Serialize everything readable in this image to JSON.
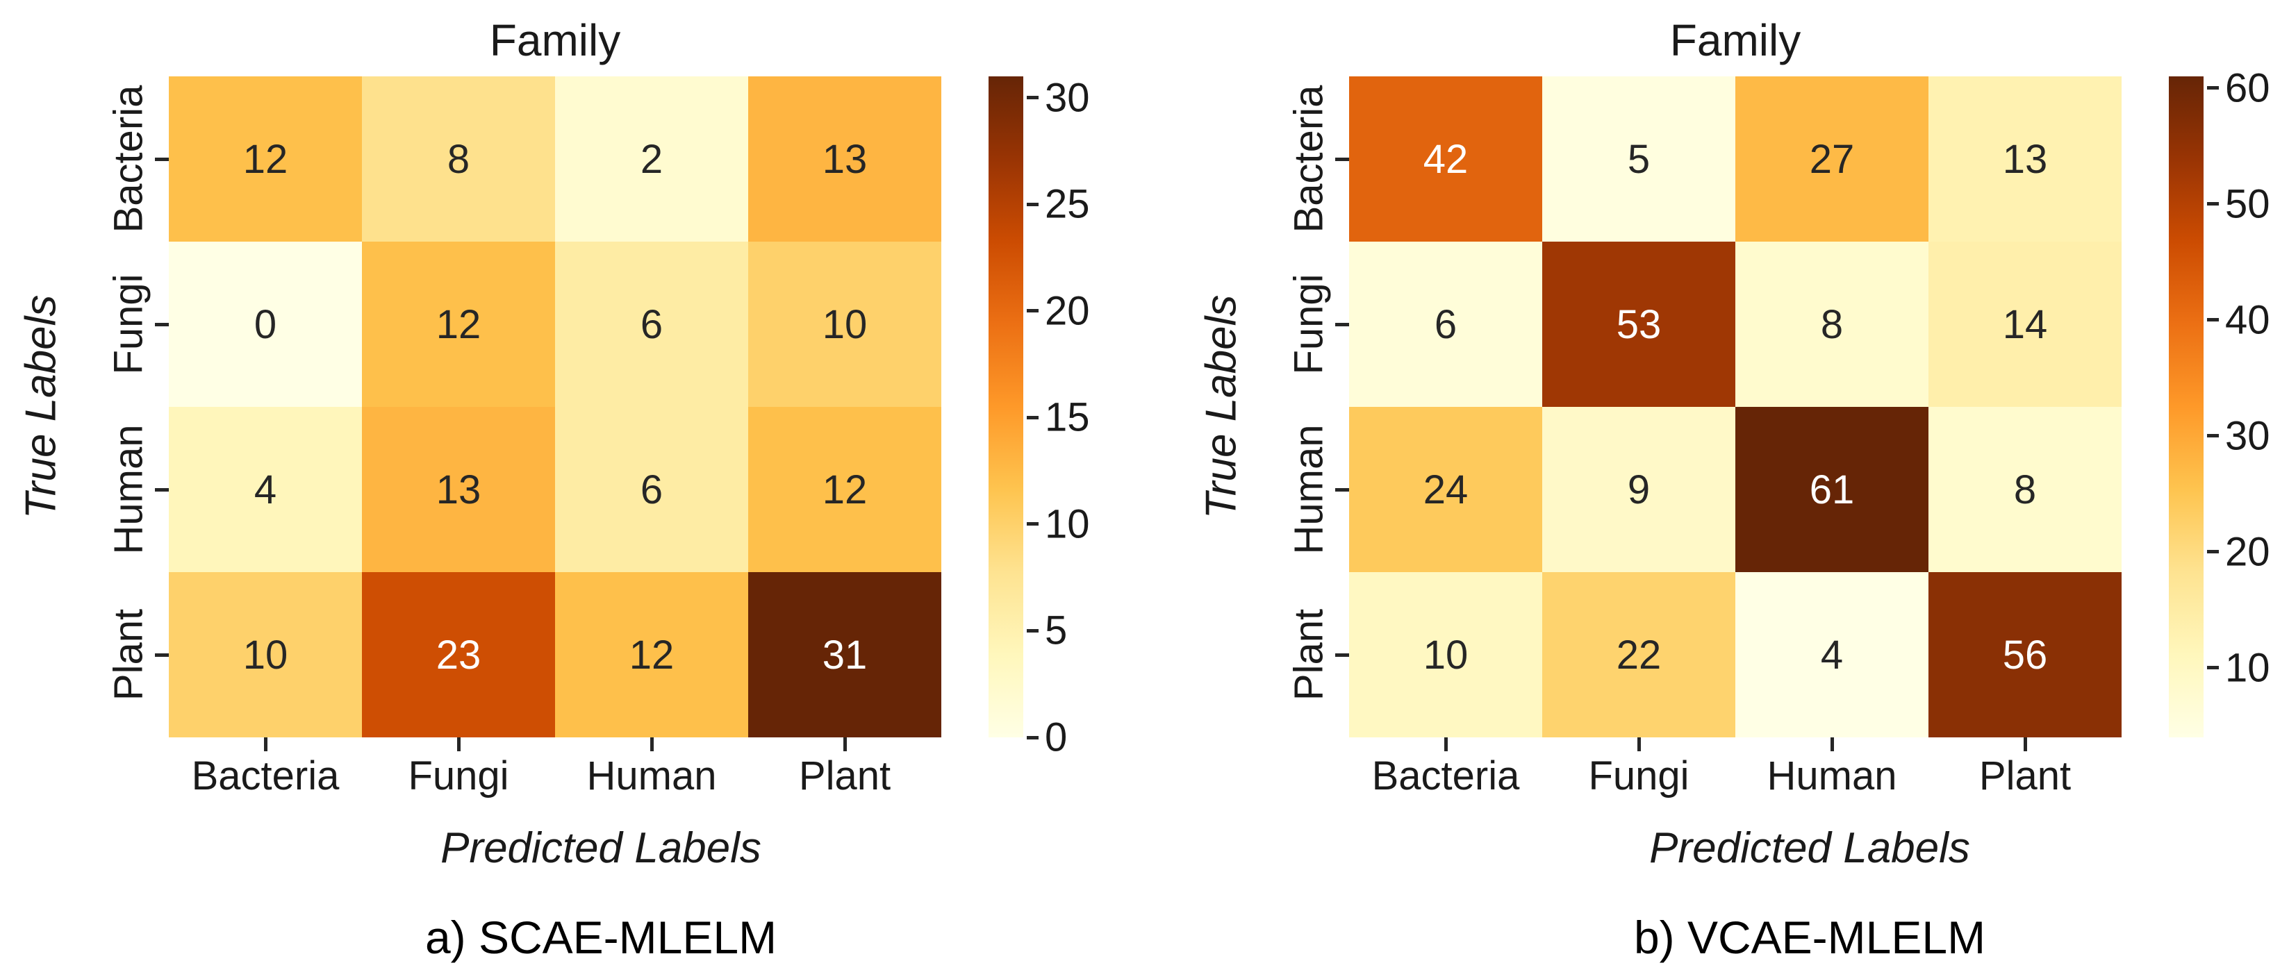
{
  "figure": {
    "background": "#ffffff",
    "colormap": {
      "name": "YlOrBr",
      "stops": [
        "#ffffe5",
        "#fff7bc",
        "#fee391",
        "#fec44f",
        "#fe9929",
        "#ec7014",
        "#cc4c02",
        "#993404",
        "#662506"
      ]
    },
    "annotation_colors": {
      "dark": "#262626",
      "light": "#ffffff"
    },
    "axis_text_color": "#1a1a1a"
  },
  "chart_data": [
    {
      "type": "heatmap",
      "panel_label": "a) SCAE-MLELM",
      "title": "Family",
      "xlabel": "Predicted Labels",
      "ylabel": "True Labels",
      "x_categories": [
        "Bacteria",
        "Fungi",
        "Human",
        "Plant"
      ],
      "y_categories": [
        "Bacteria",
        "Fungi",
        "Human",
        "Plant"
      ],
      "values": [
        [
          12,
          8,
          2,
          13
        ],
        [
          0,
          12,
          6,
          10
        ],
        [
          4,
          13,
          6,
          12
        ],
        [
          10,
          23,
          12,
          31
        ]
      ],
      "vmin": 0,
      "vmax": 31,
      "colorbar_ticks": [
        0,
        5,
        10,
        15,
        20,
        25,
        30
      ],
      "legend_position": "right",
      "grid": false
    },
    {
      "type": "heatmap",
      "panel_label": "b) VCAE-MLELM",
      "title": "Family",
      "xlabel": "Predicted Labels",
      "ylabel": "True Labels",
      "x_categories": [
        "Bacteria",
        "Fungi",
        "Human",
        "Plant"
      ],
      "y_categories": [
        "Bacteria",
        "Fungi",
        "Human",
        "Plant"
      ],
      "values": [
        [
          42,
          5,
          27,
          13
        ],
        [
          6,
          53,
          8,
          14
        ],
        [
          24,
          9,
          61,
          8
        ],
        [
          10,
          22,
          4,
          56
        ]
      ],
      "vmin": 4,
      "vmax": 61,
      "colorbar_ticks": [
        10,
        20,
        30,
        40,
        50,
        60
      ],
      "legend_position": "right",
      "grid": false
    }
  ]
}
